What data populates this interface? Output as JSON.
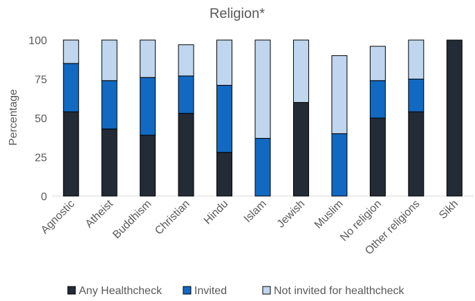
{
  "chart_data": {
    "type": "bar",
    "stacked": true,
    "title": "Religion*",
    "xlabel": "",
    "ylabel": "Percentage",
    "ylim": [
      0,
      100
    ],
    "yticks": [
      0,
      25,
      50,
      75,
      100
    ],
    "grid": false,
    "legend_position": "bottom",
    "categories": [
      "Agnostic",
      "Atheist",
      "Buddhism",
      "Christian",
      "Hindu",
      "Islam",
      "Jewish",
      "Muslim",
      "No religion",
      "Other religions",
      "Sikh"
    ],
    "series": [
      {
        "name": "Any Healthcheck",
        "color": "#232B36",
        "values": [
          54,
          43,
          39,
          53,
          28,
          0,
          60,
          0,
          50,
          54,
          100
        ]
      },
      {
        "name": "Invited",
        "color": "#1269C1",
        "values": [
          31,
          31,
          37,
          24,
          43,
          37,
          0,
          40,
          24,
          21,
          0
        ]
      },
      {
        "name": "Not invited for healthcheck",
        "color": "#BFD6EE",
        "values": [
          15,
          26,
          24,
          20,
          29,
          63,
          40,
          50,
          22,
          25,
          0
        ]
      }
    ]
  }
}
